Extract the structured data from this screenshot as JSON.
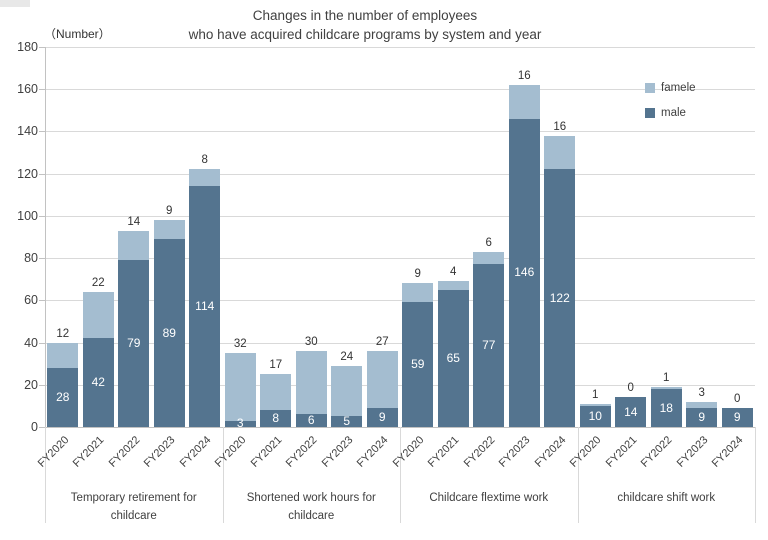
{
  "chart_data": {
    "type": "bar",
    "stacked": true,
    "title_line1": "Changes in the number of employees",
    "title_line2": "who have acquired childcare programs by system and year",
    "unit_label": "（Number）",
    "ylim": [
      0,
      180
    ],
    "ytick_step": 20,
    "grid": true,
    "legend_position": "top-right-inside",
    "series": [
      {
        "name": "famele",
        "color": "#a4bdd0"
      },
      {
        "name": "male",
        "color": "#54748f"
      }
    ],
    "years": [
      "FY2020",
      "FY2021",
      "FY2022",
      "FY2023",
      "FY2024"
    ],
    "groups": [
      {
        "label": "Temporary retirement for childcare",
        "male": [
          28,
          42,
          79,
          89,
          114
        ],
        "famele": [
          12,
          22,
          14,
          9,
          8
        ]
      },
      {
        "label": "Shortened work hours for childcare",
        "male": [
          3,
          8,
          6,
          5,
          9
        ],
        "famele": [
          32,
          17,
          30,
          24,
          27
        ]
      },
      {
        "label": "Childcare flextime work",
        "male": [
          59,
          65,
          77,
          146,
          122
        ],
        "famele": [
          9,
          4,
          6,
          16,
          16
        ]
      },
      {
        "label": "childcare shift work",
        "male": [
          10,
          14,
          18,
          9,
          9
        ],
        "famele": [
          1,
          0,
          1,
          3,
          0
        ]
      }
    ]
  }
}
